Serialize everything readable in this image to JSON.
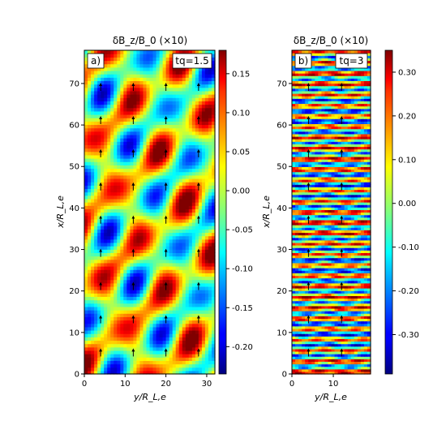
{
  "chart_data": [
    {
      "type": "heatmap",
      "panel_label": "a)",
      "title": "δB_z/B_0 (×10)",
      "annotation": "tq=1.5",
      "xlabel": "y/R_L,e",
      "ylabel": "x/R_L,e",
      "xlim": [
        0,
        32
      ],
      "ylim": [
        0,
        78
      ],
      "xticks": [
        "0",
        "10",
        "20",
        "30"
      ],
      "xtick_values": [
        0,
        10,
        20,
        30
      ],
      "yticks": [
        "0",
        "10",
        "20",
        "30",
        "40",
        "50",
        "60",
        "70"
      ],
      "ytick_values": [
        0,
        10,
        20,
        30,
        40,
        50,
        60,
        70
      ],
      "colorbar": {
        "min": -0.235,
        "max": 0.18,
        "ticks": [
          "0.15",
          "0.10",
          "0.05",
          "0.00",
          "-0.05",
          "-0.10",
          "-0.15",
          "-0.20"
        ],
        "tick_values": [
          0.15,
          0.1,
          0.05,
          0.0,
          -0.05,
          -0.1,
          -0.15,
          -0.2
        ]
      },
      "pattern": "oblique",
      "arrows_y": [
        4,
        12,
        20,
        28
      ],
      "arrows_x": [
        5,
        13,
        21,
        29,
        37,
        45,
        53,
        61,
        69
      ]
    },
    {
      "type": "heatmap",
      "panel_label": "b)",
      "title": "δB_z/B_0 (×10)",
      "annotation": "tq=3",
      "xlabel": "y/R_L,e",
      "ylabel": "",
      "xlim": [
        0,
        19
      ],
      "ylim": [
        0,
        78
      ],
      "xticks": [
        "0",
        "10"
      ],
      "xtick_values": [
        0,
        10
      ],
      "yticks": [
        "0",
        "10",
        "20",
        "30",
        "40",
        "50",
        "60",
        "70"
      ],
      "ytick_values": [
        0,
        10,
        20,
        30,
        40,
        50,
        60,
        70
      ],
      "colorbar": {
        "min": -0.39,
        "max": 0.35,
        "ticks": [
          "0.30",
          "0.20",
          "0.10",
          "0.00",
          "-0.10",
          "-0.20",
          "-0.30"
        ],
        "tick_values": [
          0.3,
          0.2,
          0.1,
          0.0,
          -0.1,
          -0.2,
          -0.3
        ]
      },
      "pattern": "horizontal",
      "arrows_y": [
        4,
        12
      ],
      "arrows_x": [
        5,
        13,
        21,
        29,
        37,
        45,
        53,
        61,
        69
      ]
    }
  ]
}
